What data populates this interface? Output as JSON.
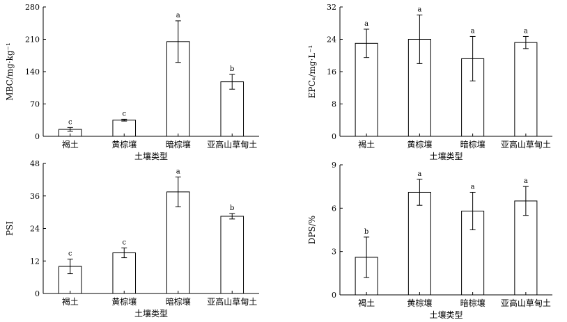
{
  "chart_data": [
    {
      "type": "bar",
      "categories": [
        "褐土",
        "黄棕壤",
        "暗棕壤",
        "亚高山草甸土"
      ],
      "values": [
        15,
        35,
        205,
        118
      ],
      "errors": [
        4,
        2,
        45,
        16
      ],
      "significance": [
        "c",
        "c",
        "a",
        "b"
      ],
      "ylabel": "MBC/mg·kg⁻¹",
      "xlabel": "土壤类型",
      "ylim": [
        0,
        280
      ],
      "yticks": [
        0,
        70,
        140,
        210,
        280
      ]
    },
    {
      "type": "bar",
      "categories": [
        "褐土",
        "黄棕壤",
        "暗棕壤",
        "亚高山草甸土"
      ],
      "values": [
        23,
        24,
        19.2,
        23.2
      ],
      "errors": [
        3.5,
        6,
        5.5,
        1.5
      ],
      "significance": [
        "a",
        "a",
        "a",
        "a"
      ],
      "ylabel": "EPCₐ/mg·L⁻¹",
      "xlabel": "土壤类型",
      "ylim": [
        0,
        32
      ],
      "yticks": [
        0,
        8,
        16,
        24,
        32
      ]
    },
    {
      "type": "bar",
      "categories": [
        "褐土",
        "黄棕壤",
        "暗棕壤",
        "亚高山草甸土"
      ],
      "values": [
        10,
        15,
        37.5,
        28.5
      ],
      "errors": [
        2.7,
        1.8,
        5.5,
        1
      ],
      "significance": [
        "c",
        "c",
        "a",
        "b"
      ],
      "ylabel": "PSI",
      "xlabel": "土壤类型",
      "ylim": [
        0,
        48
      ],
      "yticks": [
        0,
        12,
        24,
        36,
        48
      ]
    },
    {
      "type": "bar",
      "categories": [
        "褐土",
        "黄棕壤",
        "暗棕壤",
        "亚高山草甸土"
      ],
      "values": [
        2.6,
        7.1,
        5.8,
        6.5
      ],
      "errors": [
        1.4,
        0.9,
        1.3,
        1
      ],
      "significance": [
        "b",
        "a",
        "a",
        "a"
      ],
      "ylabel": "DPS/%",
      "xlabel": "土壤类型",
      "ylim": [
        0,
        9
      ],
      "yticks": [
        0,
        3,
        6,
        9
      ]
    }
  ]
}
